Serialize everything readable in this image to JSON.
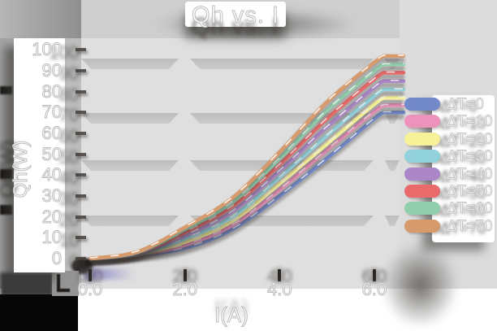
{
  "title": "Qh vs. I",
  "colors": {
    "canvas_bg": "#cfcfcf",
    "plot_bg": "#dfdfdf",
    "gridband": "#c4c4c4",
    "text_fill": "#ffffff",
    "text_outline": "#bcbcbc",
    "shadow": "#4a4542"
  },
  "chart_data": {
    "type": "line",
    "title": "Qh vs. I",
    "xlabel": "I(A)",
    "ylabel": "Qh(W)",
    "xlim": [
      0,
      6.6
    ],
    "ylim": [
      0,
      100
    ],
    "xticks": [
      "0.0",
      "2.0",
      "4.0",
      "6.0"
    ],
    "yticks": [
      0,
      10,
      20,
      30,
      40,
      50,
      60,
      70,
      80,
      90,
      100
    ],
    "grid": "horizontal-bands",
    "legend_position": "right",
    "x": [
      0,
      1,
      2,
      3,
      4,
      5,
      6,
      6.2
    ],
    "series": [
      {
        "name": "ΔT=0",
        "color": "#7289ca",
        "values": [
          0,
          1.5,
          5.0,
          14.0,
          30.0,
          48.0,
          67.0,
          70.0
        ]
      },
      {
        "name": "ΔT=10",
        "color": "#ec92bb",
        "values": [
          0,
          1.8,
          6.5,
          16.0,
          33.0,
          52.0,
          70.5,
          73.5
        ]
      },
      {
        "name": "ΔT=20",
        "color": "#f7f29a",
        "values": [
          0,
          2.0,
          8.0,
          18.0,
          36.0,
          55.0,
          74.0,
          77.0
        ]
      },
      {
        "name": "ΔT=30",
        "color": "#92d2dd",
        "values": [
          0,
          2.3,
          9.5,
          20.0,
          39.0,
          59.0,
          78.0,
          81.0
        ]
      },
      {
        "name": "ΔT=40",
        "color": "#ab87c8",
        "values": [
          0,
          2.5,
          11.0,
          22.5,
          42.0,
          63.0,
          82.0,
          85.0
        ]
      },
      {
        "name": "ΔT=50",
        "color": "#e96a6a",
        "values": [
          0,
          2.8,
          12.5,
          25.0,
          45.0,
          67.0,
          86.0,
          89.0
        ]
      },
      {
        "name": "ΔT=60",
        "color": "#92cfae",
        "values": [
          0,
          3.0,
          14.0,
          27.0,
          48.0,
          71.0,
          90.0,
          93.0
        ]
      },
      {
        "name": "ΔT=70",
        "color": "#d69a6c",
        "values": [
          0,
          3.3,
          15.0,
          29.0,
          51.0,
          75.0,
          94.0,
          97.0
        ]
      }
    ]
  }
}
